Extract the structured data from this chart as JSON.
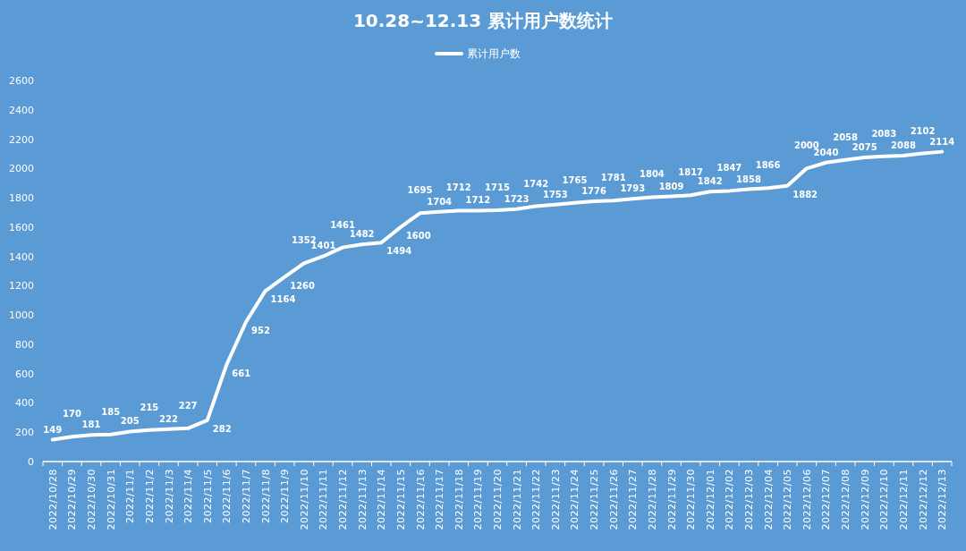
{
  "chart_data": {
    "type": "line",
    "title": "10.28~12.13 累计用户数统计",
    "categories": [
      "2022/10/28",
      "2022/10/29",
      "2022/10/30",
      "2022/10/31",
      "2022/11/1",
      "2022/11/2",
      "2022/11/3",
      "2022/11/4",
      "2022/11/5",
      "2022/11/6",
      "2022/11/7",
      "2022/11/8",
      "2022/11/9",
      "2022/11/10",
      "2022/11/11",
      "2022/11/12",
      "2022/11/13",
      "2022/11/14",
      "2022/11/15",
      "2022/11/16",
      "2022/11/17",
      "2022/11/18",
      "2022/11/19",
      "2022/11/20",
      "2022/11/21",
      "2022/11/22",
      "2022/11/23",
      "2022/11/24",
      "2022/11/25",
      "2022/11/26",
      "2022/11/27",
      "2022/11/28",
      "2022/11/29",
      "2022/11/30",
      "2022/12/01",
      "2022/12/02",
      "2022/12/03",
      "2022/12/04",
      "2022/12/05",
      "2022/12/06",
      "2022/12/07",
      "2022/12/08",
      "2022/12/09",
      "2022/12/10",
      "2022/12/11",
      "2022/12/12",
      "2022/12/13"
    ],
    "series": [
      {
        "name": "累计用户数",
        "color": "#ffffff",
        "values": [
          149,
          170,
          181,
          185,
          205,
          215,
          222,
          227,
          282,
          661,
          952,
          1164,
          1260,
          1352,
          1401,
          1461,
          1482,
          1494,
          1600,
          1695,
          1704,
          1712,
          1712,
          1715,
          1723,
          1742,
          1753,
          1765,
          1776,
          1781,
          1793,
          1804,
          1809,
          1817,
          1842,
          1847,
          1858,
          1866,
          1882,
          2000,
          2040,
          2058,
          2075,
          2083,
          2088,
          2102,
          2114
        ]
      }
    ],
    "ylim": [
      0,
      2600
    ],
    "yticks": [
      0,
      200,
      400,
      600,
      800,
      1000,
      1200,
      1400,
      1600,
      1800,
      2000,
      2200,
      2400,
      2600
    ],
    "grid": false,
    "legend": "top",
    "marker": "none",
    "line_style": "solid",
    "data_labels": true
  }
}
